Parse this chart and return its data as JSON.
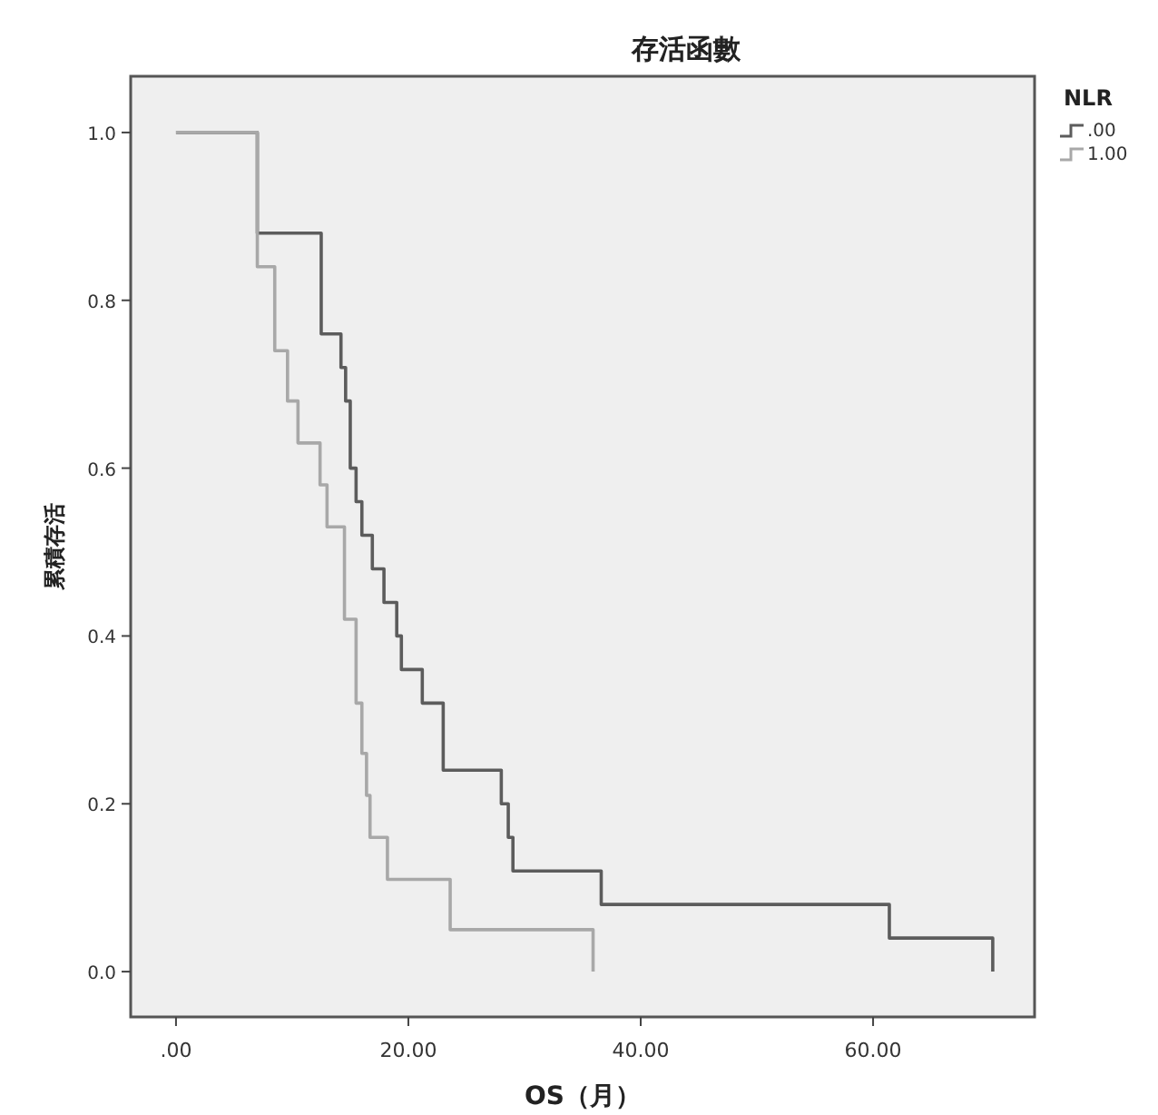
{
  "chart_data": {
    "type": "step",
    "title": "存活函數",
    "xlabel": "OS（月）",
    "ylabel": "累積存活",
    "legend_title": "NLR",
    "legend": "top right",
    "line_style": "solid",
    "grid": false,
    "xlim": [
      -3.9,
      73.9
    ],
    "ylim": [
      -0.054,
      1.067
    ],
    "xticks": [
      {
        "value": 0,
        "label": ".00"
      },
      {
        "value": 20,
        "label": "20.00"
      },
      {
        "value": 40,
        "label": "40.00"
      },
      {
        "value": 60,
        "label": "60.00"
      }
    ],
    "yticks": [
      {
        "value": 0,
        "label": "0.0"
      },
      {
        "value": 0.2,
        "label": "0.2"
      },
      {
        "value": 0.4,
        "label": "0.4"
      },
      {
        "value": 0.6,
        "label": "0.6"
      },
      {
        "value": 0.8,
        "label": "0.8"
      },
      {
        "value": 1,
        "label": "1.0"
      }
    ],
    "series": [
      {
        "name": ".00",
        "color": "#5c5c5c",
        "x": [
          0,
          7.0,
          12.5,
          14.2,
          14.6,
          15.0,
          15.5,
          16.0,
          16.9,
          17.9,
          19.0,
          19.4,
          21.2,
          23.0,
          28.0,
          28.6,
          29.0,
          36.6,
          61.4,
          70.3
        ],
        "values": [
          1,
          0.88,
          0.76,
          0.72,
          0.68,
          0.6,
          0.56,
          0.52,
          0.48,
          0.44,
          0.4,
          0.36,
          0.32,
          0.24,
          0.2,
          0.16,
          0.12,
          0.08,
          0.04,
          0
        ]
      },
      {
        "name": "1.00",
        "color": "#a8a8a8",
        "x": [
          0,
          7.0,
          8.5,
          9.6,
          10.5,
          12.4,
          13.0,
          14.5,
          15.5,
          16.0,
          16.4,
          16.7,
          18.2,
          23.6,
          35.9
        ],
        "values": [
          1,
          0.84,
          0.74,
          0.68,
          0.63,
          0.58,
          0.53,
          0.42,
          0.32,
          0.26,
          0.21,
          0.16,
          0.11,
          0.05,
          0
        ]
      }
    ]
  }
}
